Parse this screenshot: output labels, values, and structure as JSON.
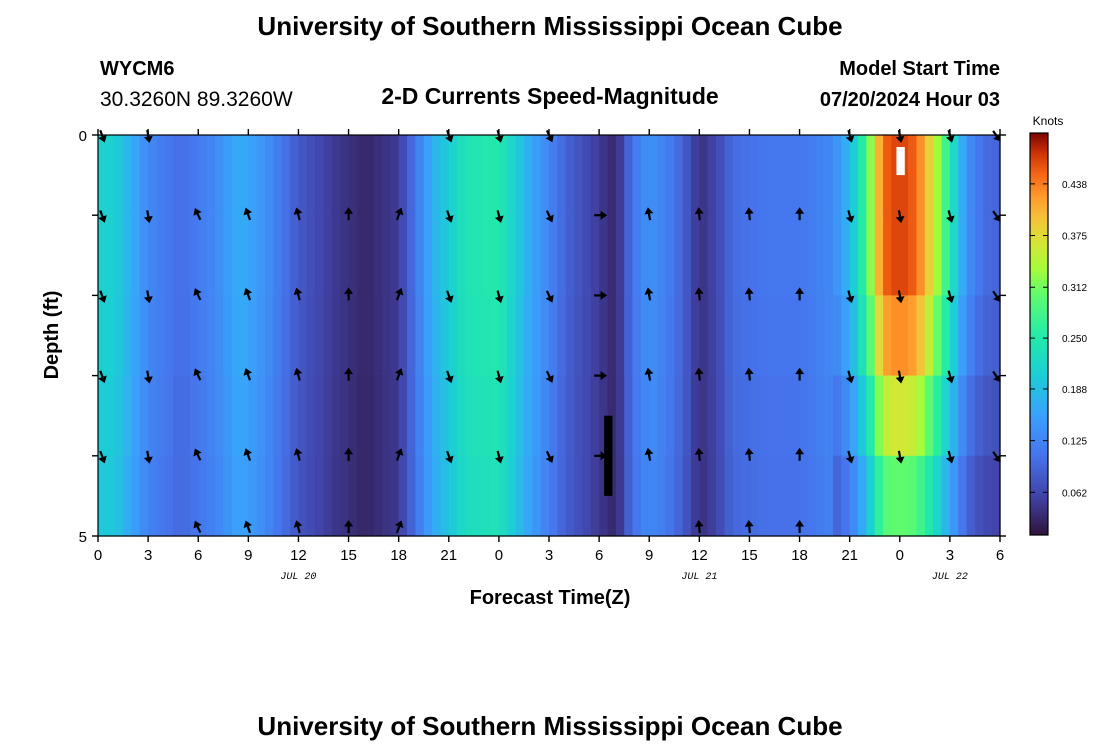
{
  "header": {
    "title": "University of Southern Mississippi Ocean Cube",
    "station_id": "WYCM6",
    "station_coords": "30.3260N  89.3260W",
    "subtitle": "2-D Currents Speed-Magnitude",
    "model_start_label": "Model Start Time",
    "model_start_value": "07/20/2024 Hour 03"
  },
  "footer": {
    "title": "University of Southern Mississippi Ocean Cube"
  },
  "chart_data": {
    "type": "heatmap",
    "title": "2-D Currents Speed-Magnitude",
    "xlabel": "Forecast Time(Z)",
    "ylabel": "Depth (ft)",
    "x_tick_labels": [
      "0",
      "3",
      "6",
      "9",
      "12",
      "15",
      "18",
      "21",
      "0",
      "3",
      "6",
      "9",
      "12",
      "15",
      "18",
      "21",
      "0",
      "3",
      "6"
    ],
    "x_range_hours": [
      0,
      54
    ],
    "date_labels": [
      {
        "label": "JUL 20",
        "hour": 12
      },
      {
        "label": "JUL 21",
        "hour": 36
      },
      {
        "label": "JUL 22",
        "hour": 51
      }
    ],
    "y_tick_labels": [
      "0",
      "5"
    ],
    "ylim": [
      0,
      5
    ],
    "depth_levels": [
      0,
      1,
      2,
      3,
      4,
      5
    ],
    "colorbar": {
      "title": "Knots",
      "ticks": [
        "0.062",
        "0.125",
        "0.188",
        "0.250",
        "0.312",
        "0.375",
        "0.438"
      ],
      "range": [
        0.01,
        0.5
      ]
    },
    "speed_profile_knots": [
      [
        0,
        0.21
      ],
      [
        1,
        0.21
      ],
      [
        3,
        0.13
      ],
      [
        5,
        0.1
      ],
      [
        7,
        0.13
      ],
      [
        8.5,
        0.17
      ],
      [
        10,
        0.14
      ],
      [
        12,
        0.08
      ],
      [
        14,
        0.05
      ],
      [
        16,
        0.03
      ],
      [
        18,
        0.05
      ],
      [
        20,
        0.17
      ],
      [
        22,
        0.24
      ],
      [
        24,
        0.25
      ],
      [
        26,
        0.16
      ],
      [
        28,
        0.09
      ],
      [
        30,
        0.05
      ],
      [
        31,
        0.03
      ],
      [
        32,
        0.11
      ],
      [
        33,
        0.14
      ],
      [
        34,
        0.12
      ],
      [
        35,
        0.09
      ],
      [
        36,
        0.04
      ],
      [
        37,
        0.06
      ],
      [
        38,
        0.1
      ],
      [
        40,
        0.11
      ],
      [
        42,
        0.11
      ],
      [
        44,
        0.13
      ],
      [
        45,
        0.18
      ],
      [
        46,
        0.28
      ],
      [
        47,
        0.45
      ],
      [
        48,
        0.47
      ],
      [
        49,
        0.45
      ],
      [
        50,
        0.36
      ],
      [
        51,
        0.25
      ],
      [
        52,
        0.14
      ],
      [
        53,
        0.1
      ],
      [
        54,
        0.09
      ]
    ],
    "depth_factors": [
      1.0,
      1.0,
      0.92,
      0.78,
      0.65,
      0.5
    ],
    "vector_times": [
      0,
      3,
      6,
      9,
      12,
      15,
      18,
      21,
      24,
      27,
      30,
      33,
      36,
      39,
      42,
      45,
      48,
      51,
      54
    ],
    "vector_angles_deg": [
      160,
      170,
      -25,
      -20,
      -15,
      0,
      20,
      160,
      165,
      155,
      90,
      -10,
      -5,
      -5,
      0,
      165,
      170,
      165,
      145
    ],
    "vector_depth_rows": [
      {
        "depth": 0,
        "times": [
          0,
          3,
          21,
          24,
          27,
          45,
          48,
          51,
          54
        ]
      },
      {
        "depth": 1,
        "times": [
          0,
          3,
          6,
          9,
          12,
          15,
          18,
          21,
          24,
          27,
          30,
          33,
          36,
          39,
          42,
          45,
          48,
          51,
          54
        ]
      },
      {
        "depth": 2,
        "times": [
          0,
          3,
          6,
          9,
          12,
          15,
          18,
          21,
          24,
          27,
          30,
          33,
          36,
          39,
          42,
          45,
          48,
          51,
          54
        ]
      },
      {
        "depth": 3,
        "times": [
          0,
          3,
          6,
          9,
          12,
          15,
          18,
          21,
          24,
          27,
          30,
          33,
          36,
          39,
          42,
          45,
          48,
          51,
          54
        ]
      },
      {
        "depth": 4,
        "times": [
          0,
          3,
          6,
          9,
          12,
          15,
          18,
          21,
          24,
          27,
          30,
          33,
          36,
          39,
          42,
          45,
          48,
          51,
          54
        ]
      },
      {
        "depth": 4.9,
        "times": [
          6,
          9,
          12,
          15,
          18,
          36,
          39,
          42
        ]
      }
    ],
    "missing_data": [
      {
        "hour_start": 30.3,
        "hour_end": 30.8,
        "depth_start": 3.5,
        "depth_end": 4.5,
        "color": "#000000"
      },
      {
        "hour_start": 47.8,
        "hour_end": 48.3,
        "depth_start": 0.15,
        "depth_end": 0.5,
        "color": "#ffffff"
      }
    ]
  }
}
